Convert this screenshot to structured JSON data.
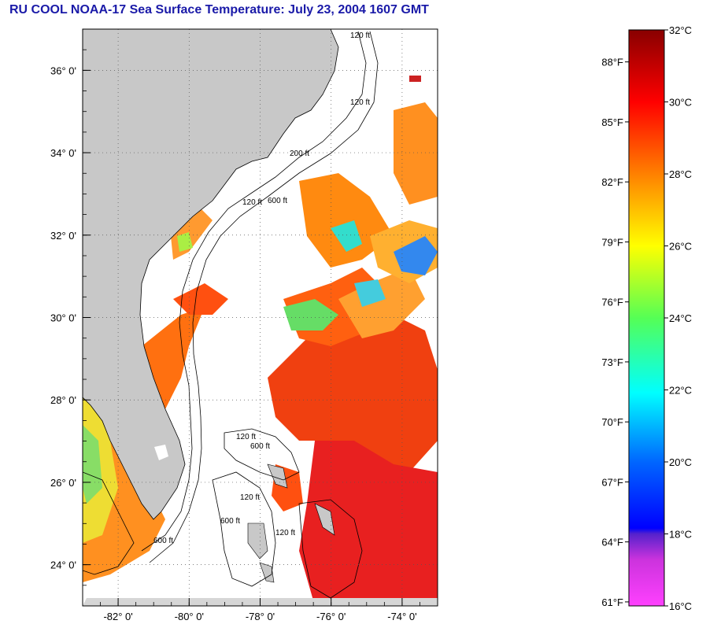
{
  "title": "RU COOL  NOAA-17  Sea Surface Temperature:  July 23, 2004 1607 GMT",
  "map": {
    "lon_range": [
      -83,
      -73
    ],
    "lat_range": [
      23,
      37
    ],
    "lat_ticks": [
      {
        "value": 36,
        "label": "36° 0'"
      },
      {
        "value": 34,
        "label": "34° 0'"
      },
      {
        "value": 32,
        "label": "32° 0'"
      },
      {
        "value": 30,
        "label": "30° 0'"
      },
      {
        "value": 28,
        "label": "28° 0'"
      },
      {
        "value": 26,
        "label": "26° 0'"
      },
      {
        "value": 24,
        "label": "24° 0'"
      }
    ],
    "lon_ticks": [
      {
        "value": -82,
        "label": "-82° 0'"
      },
      {
        "value": -80,
        "label": "-80° 0'"
      },
      {
        "value": -78,
        "label": "-78° 0'"
      },
      {
        "value": -76,
        "label": "-76° 0'"
      },
      {
        "value": -74,
        "label": "-74° 0'"
      }
    ],
    "contour_labels": [
      "120 ft",
      "120 ft",
      "200 ft",
      "120 ft",
      "600 ft",
      "120 ft",
      "600 ft",
      "120 ft",
      "600 ft",
      "120 ft",
      "600 ft"
    ],
    "land_color": "#c8c8c8",
    "cloud_color": "#ffffff"
  },
  "colorbar": {
    "range_c": [
      16,
      32
    ],
    "celsius_labels": [
      {
        "value": 32,
        "label": "32°C"
      },
      {
        "value": 30,
        "label": "30°C"
      },
      {
        "value": 28,
        "label": "28°C"
      },
      {
        "value": 26,
        "label": "26°C"
      },
      {
        "value": 24,
        "label": "24°C"
      },
      {
        "value": 22,
        "label": "22°C"
      },
      {
        "value": 20,
        "label": "20°C"
      },
      {
        "value": 18,
        "label": "18°C"
      },
      {
        "value": 16,
        "label": "16°C"
      }
    ],
    "fahrenheit_labels": [
      {
        "value": 88,
        "label": "88°F"
      },
      {
        "value": 85,
        "label": "85°F"
      },
      {
        "value": 82,
        "label": "82°F"
      },
      {
        "value": 79,
        "label": "79°F"
      },
      {
        "value": 76,
        "label": "76°F"
      },
      {
        "value": 73,
        "label": "73°F"
      },
      {
        "value": 70,
        "label": "70°F"
      },
      {
        "value": 67,
        "label": "67°F"
      },
      {
        "value": 64,
        "label": "64°F"
      },
      {
        "value": 61,
        "label": "61°F"
      }
    ]
  }
}
